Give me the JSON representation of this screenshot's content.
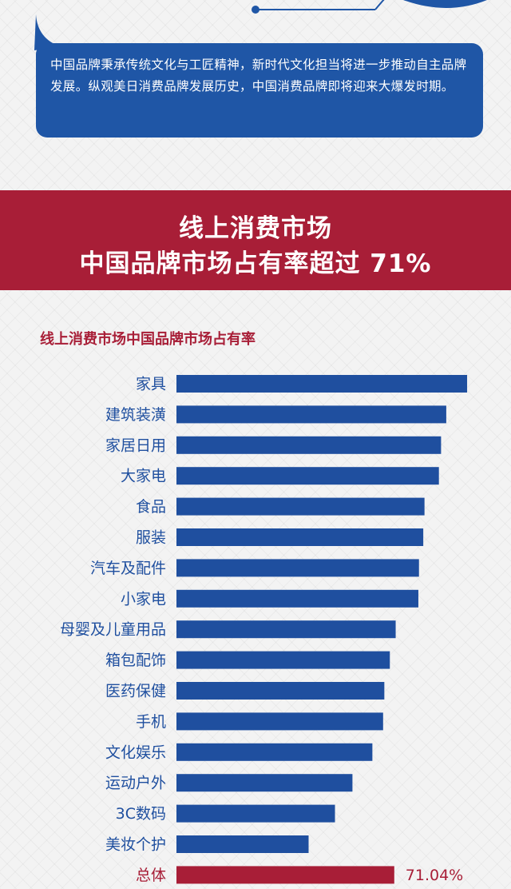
{
  "intro": {
    "text": "中国品牌秉承传统文化与工匠精神，新时代文化担当将进一步推动自主品牌发展。纵观美日消费品牌发展历史，中国消费品牌即将迎来大爆发时期。"
  },
  "banner": {
    "line1": "线上消费市场",
    "line2": "中国品牌市场占有率超过 71%"
  },
  "colors": {
    "bar": "#1f4f9f",
    "total_bar": "#a81e37",
    "accent": "#a81e37",
    "bubble": "#1f56a6"
  },
  "chart_data": {
    "type": "bar",
    "orientation": "horizontal",
    "title": "线上消费市场中国品牌市场占有率",
    "categories": [
      "家具",
      "建筑装潢",
      "家居日用",
      "大家电",
      "食品",
      "服装",
      "汽车及配件",
      "小家电",
      "母婴及儿童用品",
      "箱包配饰",
      "医药保健",
      "手机",
      "文化娱乐",
      "运动户外",
      "3C数码",
      "美妆个护",
      "总体"
    ],
    "values": [
      94.8,
      88.0,
      86.3,
      85.6,
      80.9,
      80.5,
      79.1,
      78.9,
      71.5,
      69.6,
      67.8,
      67.4,
      63.9,
      57.4,
      51.7,
      43.1,
      71.04
    ],
    "data_labels": [
      "",
      "",
      "",
      "",
      "",
      "",
      "",
      "",
      "",
      "",
      "",
      "",
      "",
      "",
      "",
      "",
      "71.04%"
    ],
    "xlim": [
      0,
      100
    ],
    "grid": false,
    "legend": "none"
  }
}
